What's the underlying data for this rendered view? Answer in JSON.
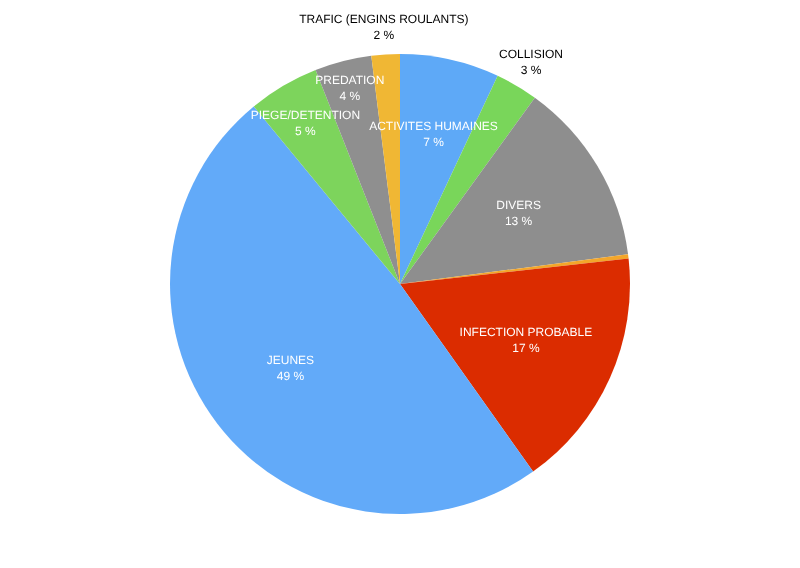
{
  "chart_data": {
    "type": "pie",
    "categories": [
      "ACTIVITES HUMAINES",
      "COLLISION",
      "DIVERS",
      null,
      "INFECTION PROBABLE",
      "JEUNES",
      "PIEGE/DETENTION",
      "PREDATION",
      "TRAFIC (ENGINS ROULANTS)"
    ],
    "values": [
      7,
      3,
      13,
      0.3,
      17,
      49,
      5,
      4,
      2
    ],
    "value_labels": [
      "7 %",
      "3 %",
      "13 %",
      null,
      "17 %",
      "49 %",
      "5 %",
      "4 %",
      "2 %"
    ],
    "colors": [
      "#5ea9f7",
      "#79d65a",
      "#8e8e8e",
      "#f3a62a",
      "#db2c00",
      "#62aaf9",
      "#7dd45c",
      "#8f8f8f",
      "#f0b734"
    ],
    "legend": false
  }
}
